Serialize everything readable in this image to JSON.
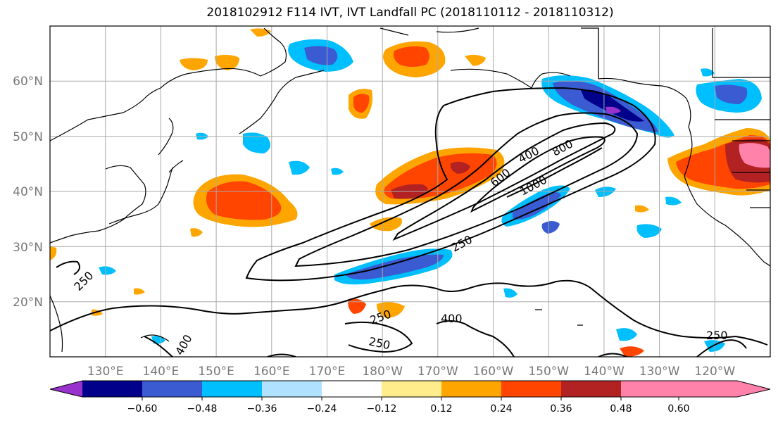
{
  "title": "2018102912 F114 IVT, IVT Landfall PC (2018110112 - 2018110312)",
  "lon_ticks": [
    "130°E",
    "140°E",
    "150°E",
    "160°E",
    "170°E",
    "180°W",
    "170°W",
    "160°W",
    "150°W",
    "140°W",
    "130°W",
    "120°W"
  ],
  "lat_ticks": [
    "20°N",
    "30°N",
    "40°N",
    "50°N",
    "60°N"
  ],
  "contour_labels": [
    "250",
    "400",
    "600",
    "800",
    "1000",
    "250",
    "250",
    "400",
    "250",
    "400",
    "250",
    "250"
  ],
  "colorbar": {
    "ticks": [
      "−0.60",
      "−0.48",
      "−0.36",
      "−0.24",
      "−0.12",
      "0.12",
      "0.24",
      "0.36",
      "0.48",
      "0.60"
    ],
    "colors": [
      "#9932cc",
      "#00008b",
      "#3a5bd1",
      "#00bfff",
      "#b0e2ff",
      "#ffffff",
      "#ffec8b",
      "#ffa500",
      "#ff4500",
      "#b22222",
      "#ff82ab"
    ]
  },
  "map_extent": {
    "lon_range": [
      "120°E",
      "250°E"
    ],
    "lat_range": [
      "10°N",
      "70°N"
    ]
  }
}
